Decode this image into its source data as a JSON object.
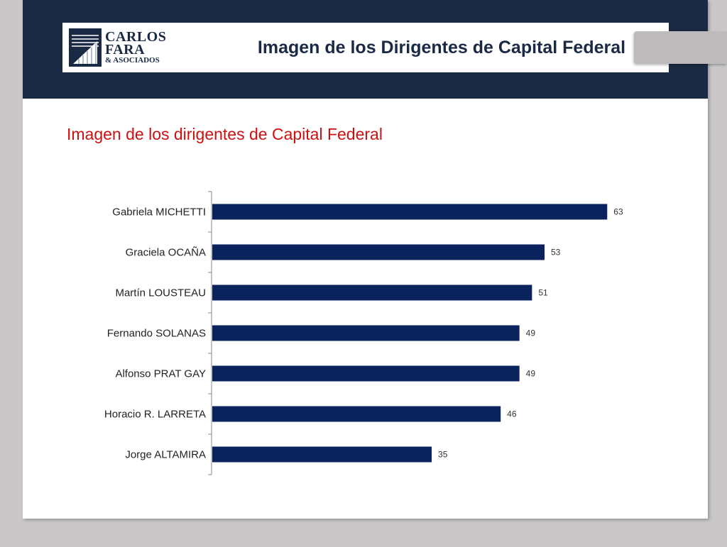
{
  "header": {
    "logo": {
      "line1": "CARLOS",
      "line2": "FARA",
      "line3": "& ASOCIADOS"
    },
    "title": "Imagen de los Dirigentes de Capital Federal"
  },
  "section_title": "Imagen de los dirigentes de Capital Federal",
  "colors": {
    "header_background": "#1a2a44",
    "bar": "#0a235c",
    "section_title": "#cc1111"
  },
  "chart_data": {
    "type": "bar",
    "orientation": "horizontal",
    "categories": [
      "Gabriela MICHETTI",
      "Graciela OCAÑA",
      "Martín LOUSTEAU",
      "Fernando SOLANAS",
      "Alfonso PRAT GAY",
      "Horacio R. LARRETA",
      "Jorge ALTAMIRA"
    ],
    "values": [
      63,
      53,
      51,
      49,
      49,
      46,
      35
    ],
    "title": "",
    "xlabel": "",
    "ylabel": "",
    "xlim": [
      0,
      70
    ],
    "grid": false,
    "data_labels": true
  }
}
